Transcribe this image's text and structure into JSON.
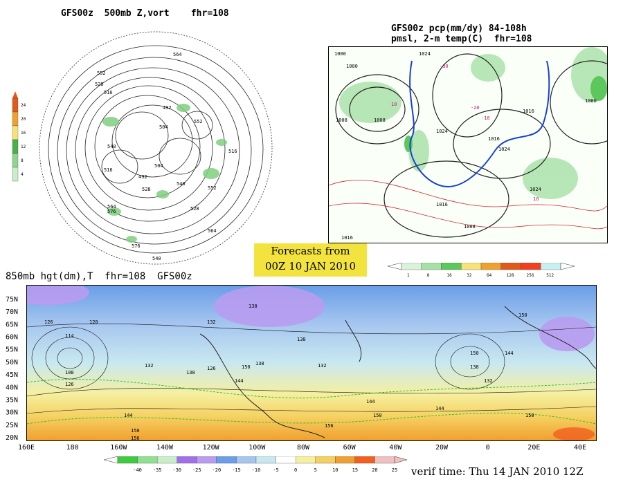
{
  "polar_map": {
    "title": "GFS00z  500mb Z,vort    fhr=108",
    "contour_labels": [
      "564",
      "552",
      "528",
      "516",
      "492",
      "504",
      "540",
      "552",
      "504",
      "516",
      "492",
      "528",
      "540",
      "552",
      "564",
      "576",
      "528",
      "564",
      "576",
      "540",
      "516"
    ],
    "colorbar": {
      "ticks": [
        "24",
        "20",
        "16",
        "12",
        "8",
        "4"
      ],
      "colors": [
        "#e05a1a",
        "#f0a030",
        "#f5e27a",
        "#4caf4c",
        "#8fd48f",
        "#c8edc8"
      ]
    }
  },
  "us_map": {
    "title_line1": "GFS00z pcp(mm/dy) 84-108h",
    "title_line2": "pmsl, 2-m temp(C)  fhr=108",
    "pressure_labels": [
      "1000",
      "1024",
      "1000",
      "1008",
      "1008",
      "1024",
      "1016",
      "1024",
      "1016",
      "1016",
      "1008",
      "1024",
      "1000",
      "1016"
    ],
    "temp_labels": [
      "10",
      "-30",
      "-20",
      "-10",
      "10"
    ],
    "colorbar": {
      "ticks": [
        "1",
        "8",
        "16",
        "32",
        "64",
        "128",
        "256",
        "512"
      ],
      "colors": [
        "#d9f2d9",
        "#a6e0a6",
        "#5cc75c",
        "#f5e27a",
        "#f0a030",
        "#e05a1a",
        "#f04020",
        "#c8f0f0"
      ]
    }
  },
  "forecast_box": {
    "line1": "Forecasts from",
    "line2": "00Z 10 JAN 2010"
  },
  "global_map": {
    "title": "850mb hgt(dm),T  fhr=108  GFS00z",
    "lat_labels": [
      "75N",
      "70N",
      "65N",
      "60N",
      "55N",
      "50N",
      "45N",
      "40N",
      "35N",
      "30N",
      "25N",
      "20N"
    ],
    "lon_labels": [
      "160E",
      "180",
      "160W",
      "140W",
      "120W",
      "100W",
      "80W",
      "60W",
      "40W",
      "20W",
      "0",
      "20E",
      "40E"
    ],
    "height_labels": [
      "138",
      "126",
      "120",
      "114",
      "108",
      "126",
      "132",
      "138",
      "144",
      "150",
      "138",
      "144",
      "150",
      "156",
      "132",
      "138",
      "126",
      "132",
      "144",
      "150",
      "156",
      "144",
      "150",
      "138",
      "132",
      "150",
      "144",
      "150"
    ],
    "colorbar": {
      "ticks": [
        "-40",
        "-35",
        "-30",
        "-25",
        "-20",
        "-15",
        "-10",
        "-5",
        "0",
        "5",
        "10",
        "15",
        "20",
        "25"
      ],
      "colors": [
        "#3dcc3d",
        "#8fe08f",
        "#c8f0c8",
        "#a070e8",
        "#b89cf0",
        "#6a9ee8",
        "#a6c6f0",
        "#c8e8f0",
        "#ffffff",
        "#f5f0a0",
        "#f5d060",
        "#f0a030",
        "#f06020",
        "#f0c0c0"
      ]
    }
  },
  "verif_time": "verif time: Thu 14 JAN 2010 12Z"
}
